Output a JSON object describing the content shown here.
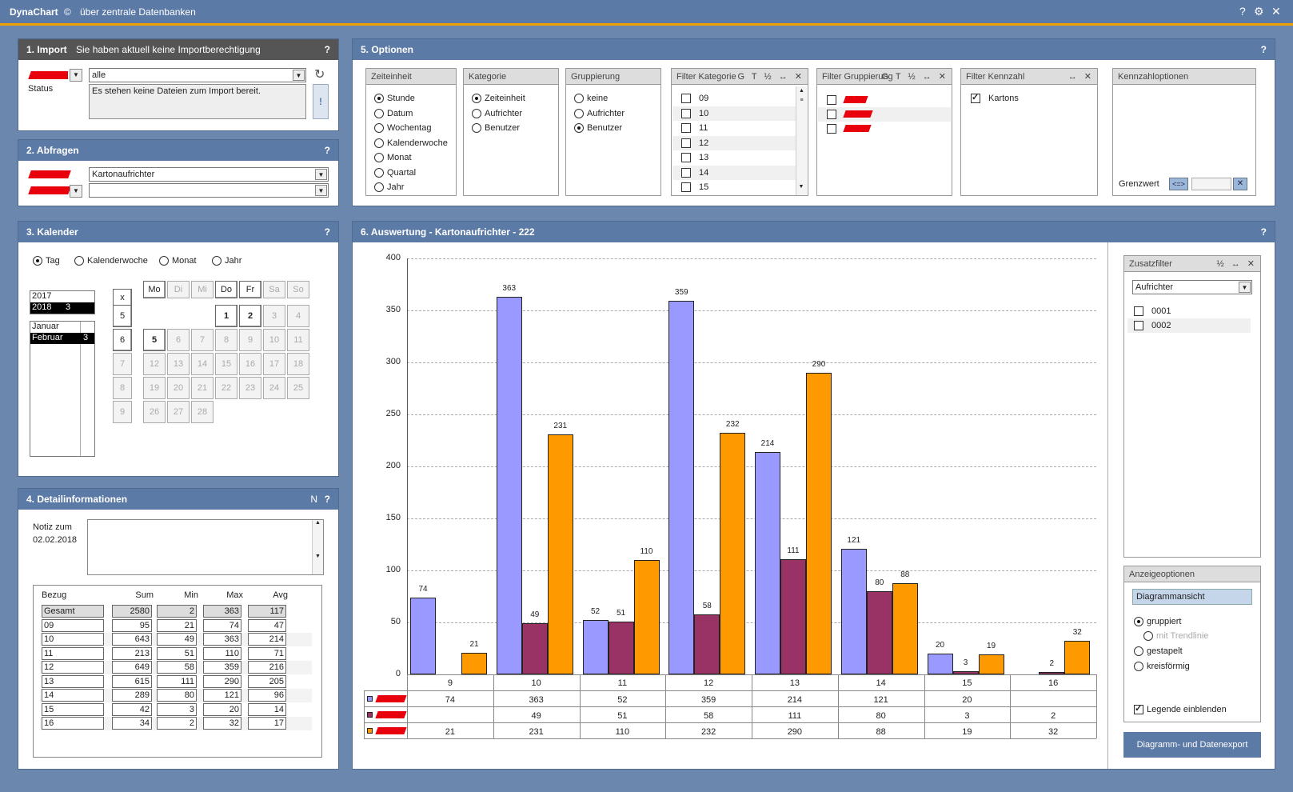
{
  "app": {
    "name": "DynaChart",
    "copyright": "©",
    "subtitle": "über zentrale Datenbanken",
    "help": "?",
    "gear": "⚙",
    "close": "✕"
  },
  "import": {
    "title": "1. Import",
    "note": "Sie haben aktuell keine Importberechtigung",
    "help": "?",
    "select_value": "alle",
    "status_label": "Status",
    "status_text": "Es stehen keine Dateien zum Import bereit.",
    "refresh": "↻",
    "alert": "!"
  },
  "abfragen": {
    "title": "2. Abfragen",
    "help": "?",
    "select1": "Kartonaufrichter",
    "select2": ""
  },
  "kalender": {
    "title": "3. Kalender",
    "help": "?",
    "modes": [
      "Tag",
      "Kalenderwoche",
      "Monat",
      "Jahr"
    ],
    "active_mode": 0,
    "years": [
      {
        "y": "2017",
        "n": ""
      },
      {
        "y": "2018",
        "n": "3"
      }
    ],
    "months": [
      {
        "m": "Januar",
        "n": ""
      },
      {
        "m": "Februar",
        "n": "3"
      }
    ],
    "x": "x",
    "weekdays": [
      "Mo",
      "Di",
      "Mi",
      "Do",
      "Fr",
      "Sa",
      "So"
    ],
    "weeks": [
      "5",
      "6",
      "7",
      "8",
      "9"
    ],
    "days": [
      [
        "",
        "",
        "",
        "1",
        "2",
        "3",
        "4"
      ],
      [
        "5",
        "6",
        "7",
        "8",
        "9",
        "10",
        "11"
      ],
      [
        "12",
        "13",
        "14",
        "15",
        "16",
        "17",
        "18"
      ],
      [
        "19",
        "20",
        "21",
        "22",
        "23",
        "24",
        "25"
      ],
      [
        "26",
        "27",
        "28",
        "",
        "",
        "",
        ""
      ]
    ]
  },
  "detail": {
    "title": "4. Detailinformationen",
    "n_icon": "N",
    "help": "?",
    "note_label": "Notiz zum",
    "note_date": "02.02.2018",
    "headers": [
      "Bezug",
      "Sum",
      "Min",
      "Max",
      "Avg"
    ],
    "rows": [
      [
        "Gesamt",
        "2580",
        "2",
        "363",
        "117"
      ],
      [
        "09",
        "95",
        "21",
        "74",
        "47"
      ],
      [
        "10",
        "643",
        "49",
        "363",
        "214"
      ],
      [
        "11",
        "213",
        "51",
        "110",
        "71"
      ],
      [
        "12",
        "649",
        "58",
        "359",
        "216"
      ],
      [
        "13",
        "615",
        "111",
        "290",
        "205"
      ],
      [
        "14",
        "289",
        "80",
        "121",
        "96"
      ],
      [
        "15",
        "42",
        "3",
        "20",
        "14"
      ],
      [
        "16",
        "34",
        "2",
        "32",
        "17"
      ]
    ]
  },
  "optionen": {
    "title": "5. Optionen",
    "help": "?",
    "zeiteinheit": {
      "title": "Zeiteinheit",
      "items": [
        "Stunde",
        "Datum",
        "Wochentag",
        "Kalenderwoche",
        "Monat",
        "Quartal",
        "Jahr"
      ],
      "selected": 0
    },
    "kategorie": {
      "title": "Kategorie",
      "items": [
        "Zeiteinheit",
        "Aufrichter",
        "Benutzer"
      ],
      "selected": 0
    },
    "gruppierung": {
      "title": "Gruppierung",
      "items": [
        "keine",
        "Aufrichter",
        "Benutzer"
      ],
      "selected": 2
    },
    "filter_kategorie": {
      "title": "Filter Kategorie",
      "icons": "G T ½ ↔ ✕",
      "items": [
        "09",
        "10",
        "11",
        "12",
        "13",
        "14",
        "15"
      ]
    },
    "filter_gruppierung": {
      "title": "Filter Gruppierung",
      "icons": "G T ½ ↔ ✕"
    },
    "filter_kennzahl": {
      "title": "Filter Kennzahl",
      "icons": "↔ ✕",
      "item": "Kartons"
    },
    "kennzahloptionen": {
      "title": "Kennzahloptionen",
      "grenzwert": "Grenzwert",
      "op": "<=>",
      "clear": "✕"
    }
  },
  "auswertung": {
    "title": "6. Auswertung - Kartonaufrichter - 222",
    "help": "?"
  },
  "zusatzfilter": {
    "title": "Zusatzfilter",
    "icons": "½ ↔ ✕",
    "select": "Aufrichter",
    "items": [
      "0001",
      "0002"
    ]
  },
  "anzeige": {
    "title": "Anzeigeoptionen",
    "button": "Diagrammansicht",
    "gruppiert": "gruppiert",
    "trend": "mit Trendlinie",
    "gestapelt": "gestapelt",
    "kreis": "kreisförmig",
    "legende": "Legende einblenden",
    "export": "Diagramm- und Datenexport"
  },
  "colors": {
    "series1": "#9999ff",
    "series2": "#993366",
    "series3": "#ff9900",
    "accent": "#f0a000",
    "header": "#5c7aa6",
    "redacted": "#e8000d"
  },
  "chart_data": {
    "type": "bar",
    "categories": [
      "9",
      "10",
      "11",
      "12",
      "13",
      "14",
      "15",
      "16"
    ],
    "series": [
      {
        "values": [
          74,
          363,
          52,
          359,
          214,
          121,
          20,
          null
        ]
      },
      {
        "values": [
          null,
          49,
          51,
          58,
          111,
          80,
          3,
          2
        ]
      },
      {
        "values": [
          21,
          231,
          110,
          232,
          290,
          88,
          19,
          32
        ]
      }
    ],
    "ylim": [
      0,
      400
    ],
    "yticks": [
      "0",
      "50",
      "100",
      "150",
      "200",
      "250",
      "300",
      "350",
      "400"
    ],
    "grid": true,
    "legend": "data table below chart"
  }
}
